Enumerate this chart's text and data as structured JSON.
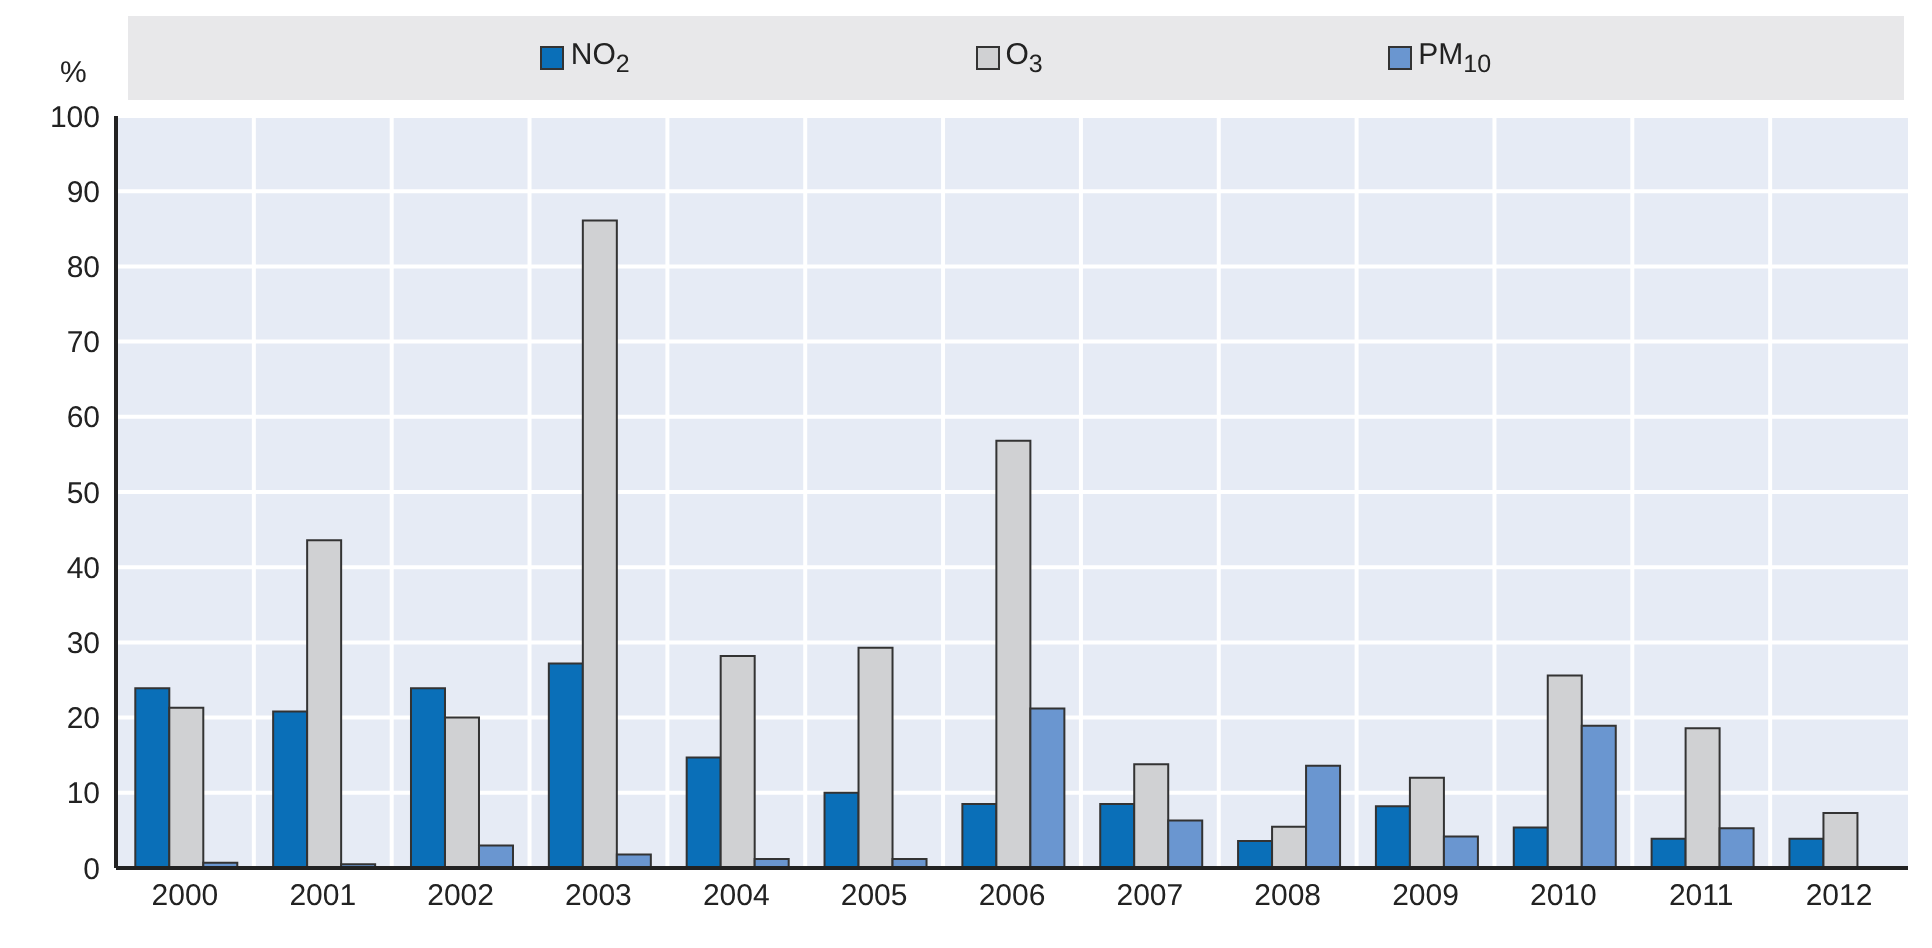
{
  "chart_data": {
    "type": "bar",
    "ylabel": "%",
    "categories": [
      "2000",
      "2001",
      "2002",
      "2003",
      "2004",
      "2005",
      "2006",
      "2007",
      "2008",
      "2009",
      "2010",
      "2011",
      "2012"
    ],
    "series": [
      {
        "name": "NO$_{2}$",
        "color": "#0a6fb8",
        "values": [
          23.9,
          20.8,
          23.9,
          27.2,
          14.7,
          10.0,
          8.5,
          8.5,
          3.6,
          8.2,
          5.4,
          3.9,
          3.9
        ]
      },
      {
        "name": "O$_{3}$",
        "color": "#d0d1d3",
        "values": [
          21.3,
          43.6,
          20.0,
          86.1,
          28.2,
          29.3,
          56.8,
          13.8,
          5.5,
          12.0,
          25.6,
          18.6,
          7.3
        ]
      },
      {
        "name": "PM$_{10}$",
        "color": "#6a96d0",
        "values": [
          0.7,
          0.5,
          3.0,
          1.8,
          1.2,
          1.2,
          21.2,
          6.3,
          13.6,
          4.2,
          18.9,
          5.3,
          null
        ]
      }
    ],
    "ylim": [
      0,
      100
    ],
    "yticks": [
      0,
      10,
      20,
      30,
      40,
      50,
      60,
      70,
      80,
      90,
      100
    ],
    "grid": true,
    "legend": "top"
  }
}
